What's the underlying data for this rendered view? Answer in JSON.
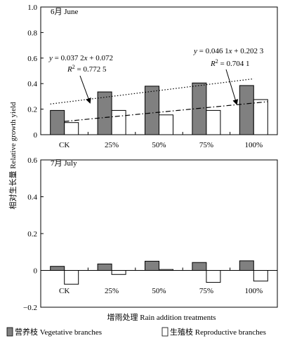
{
  "figure": {
    "ylabel": "相对生长量 Relative growth yield",
    "xlabel": "增雨处理 Rain addition treatments",
    "legend": [
      {
        "label": "营养枝 Vegetative branches",
        "color": "#808080"
      },
      {
        "label": "生殖枝 Reproductive branches",
        "color": "#ffffff"
      }
    ]
  },
  "chart_data": [
    {
      "type": "bar",
      "title": "6月 June",
      "categories": [
        "CK",
        "25%",
        "50%",
        "75%",
        "100%"
      ],
      "ylim": [
        0,
        1.0
      ],
      "yticks": [
        "0",
        "0.2",
        "0.4",
        "0.6",
        "0.8",
        "1.0"
      ],
      "series": [
        {
          "name": "营养枝 Vegetative branches",
          "color": "#808080",
          "values": [
            0.19,
            0.335,
            0.38,
            0.405,
            0.385
          ]
        },
        {
          "name": "生殖枝 Reproductive branches",
          "color": "#ffffff",
          "values": [
            0.095,
            0.19,
            0.155,
            0.19,
            0.275
          ]
        }
      ],
      "trendlines": [
        {
          "series": "营养枝 Vegetative branches",
          "style": "dotted",
          "equation": "y = 0.037 2x + 0.072",
          "r2": "R² = 0.772 5"
        },
        {
          "series": "生殖枝 Reproductive branches",
          "style": "dash-dot",
          "equation": "y = 0.046 1x + 0.202 3",
          "r2": "R² = 0.704 1"
        }
      ],
      "annotations": [
        {
          "text_parts": [
            "y",
            " = 0.037 2",
            "x",
            " + 0.072"
          ]
        },
        {
          "text_parts": [
            "R",
            "2",
            " = 0.772 5"
          ]
        },
        {
          "text_parts": [
            "y",
            " = 0.046 1",
            "x",
            " + 0.202 3"
          ]
        },
        {
          "text_parts": [
            "R",
            "2",
            " = 0.704 1"
          ]
        }
      ]
    },
    {
      "type": "bar",
      "title": "7月 July",
      "categories": [
        "CK",
        "25%",
        "50%",
        "75%",
        "100%"
      ],
      "ylim": [
        -0.2,
        0.6
      ],
      "yticks": [
        "−0.2",
        "0",
        "0.2",
        "0.4",
        "0.6"
      ],
      "series": [
        {
          "name": "营养枝 Vegetative branches",
          "color": "#808080",
          "values": [
            0.022,
            0.035,
            0.05,
            0.043,
            0.052
          ]
        },
        {
          "name": "生殖枝 Reproductive branches",
          "color": "#ffffff",
          "values": [
            -0.075,
            -0.022,
            0.005,
            -0.065,
            -0.058
          ]
        }
      ]
    }
  ]
}
